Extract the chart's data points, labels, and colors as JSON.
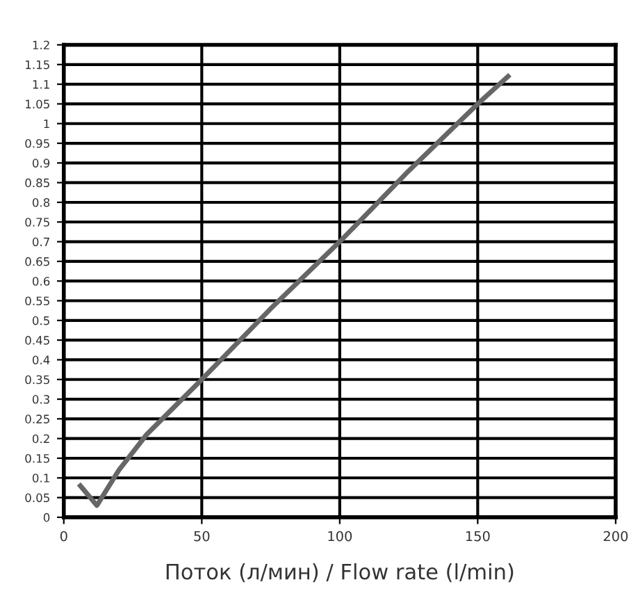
{
  "chart_data": {
    "type": "line",
    "xlabel": "Поток (л/мин) / Flow rate (l/min)",
    "series": [
      {
        "color": "#666666",
        "x": [
          6,
          12,
          20,
          30,
          50,
          75,
          100,
          125,
          150,
          161
        ],
        "values": [
          0.08,
          0.03,
          0.12,
          0.21,
          0.35,
          0.53,
          0.7,
          0.88,
          1.05,
          1.12
        ]
      }
    ],
    "xlim": [
      0,
      200
    ],
    "xticks": [
      0,
      50,
      100,
      150,
      200
    ],
    "ylim": [
      0,
      1.2
    ],
    "yticks": [
      0,
      0.05,
      0.1,
      0.15,
      0.2,
      0.25,
      0.3,
      0.35,
      0.4,
      0.45,
      0.5,
      0.55,
      0.6,
      0.65,
      0.7,
      0.75,
      0.8,
      0.85,
      0.9,
      0.95,
      1,
      1.05,
      1.1,
      1.15,
      1.2
    ],
    "grid": true,
    "marker": "none",
    "line_style": "solid",
    "legend": false
  }
}
